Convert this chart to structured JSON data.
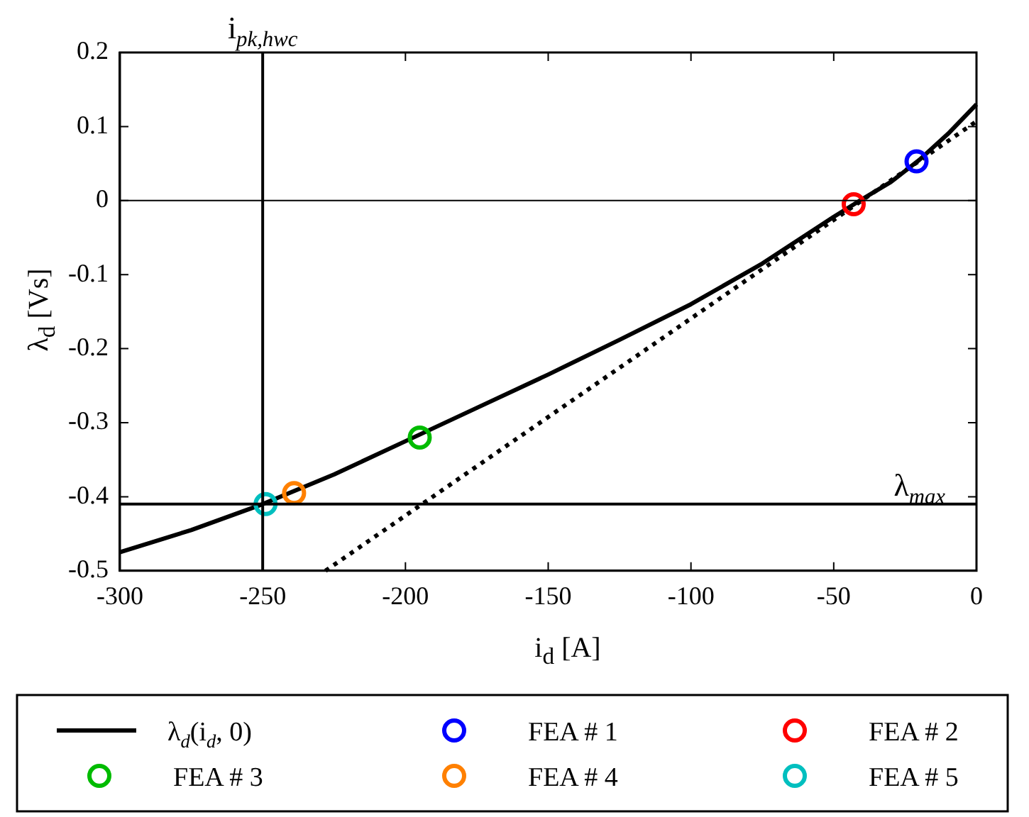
{
  "chart_data": {
    "type": "line",
    "xlabel": "i$_{d}$ [A]",
    "ylabel": "λ$_{d}$ [Vs]",
    "xlim": [
      -300,
      0
    ],
    "xticks": [
      -300,
      -250,
      -200,
      -150,
      -100,
      -50,
      0
    ],
    "ylim": [
      -0.5,
      0.2
    ],
    "yticks": [
      -0.5,
      -0.4,
      -0.3,
      -0.2,
      -0.1,
      0,
      0.1,
      0.2
    ],
    "grid": false,
    "legend": "bottom",
    "marker": "circle",
    "ref_lines": [
      {
        "axis": "x",
        "value": -250,
        "label": "i$_{pk,hwc}$",
        "color": "#000000"
      },
      {
        "axis": "y",
        "value": -0.41,
        "label": "λ$_{max}$",
        "color": "#000000"
      },
      {
        "axis": "y",
        "value": 0,
        "color": "#000000"
      }
    ],
    "series": [
      {
        "name": "λ$_{d}$(i$_{d}$, 0)",
        "color": "#000000",
        "line_style": "solid",
        "marker": "none",
        "x": [
          -300,
          -275,
          -250,
          -225,
          -200,
          -175,
          -150,
          -125,
          -100,
          -75,
          -50,
          -40,
          -30,
          -20,
          -10,
          0
        ],
        "values": [
          -0.475,
          -0.445,
          -0.41,
          -0.37,
          -0.325,
          -0.28,
          -0.235,
          -0.188,
          -0.14,
          -0.085,
          -0.022,
          0.002,
          0.025,
          0.055,
          0.09,
          0.13
        ]
      },
      {
        "color": "#000000",
        "line_style": "dotted",
        "marker": "none",
        "x": [
          -228,
          0
        ],
        "values": [
          -0.5,
          0.107
        ]
      },
      {
        "name": "FEA # 1",
        "type": "scatter",
        "color": "#0000ff",
        "x": [
          -21
        ],
        "values": [
          0.053
        ]
      },
      {
        "name": "FEA # 2",
        "type": "scatter",
        "color": "#ff0000",
        "x": [
          -43
        ],
        "values": [
          -0.005
        ]
      },
      {
        "name": "FEA # 3",
        "type": "scatter",
        "color": "#00bb00",
        "x": [
          -195
        ],
        "values": [
          -0.32
        ]
      },
      {
        "name": "FEA # 4",
        "type": "scatter",
        "color": "#ff8000",
        "x": [
          -239
        ],
        "values": [
          -0.395
        ]
      },
      {
        "name": "FEA # 5",
        "type": "scatter",
        "color": "#00bfbf",
        "x": [
          -249
        ],
        "values": [
          -0.41
        ]
      }
    ]
  }
}
